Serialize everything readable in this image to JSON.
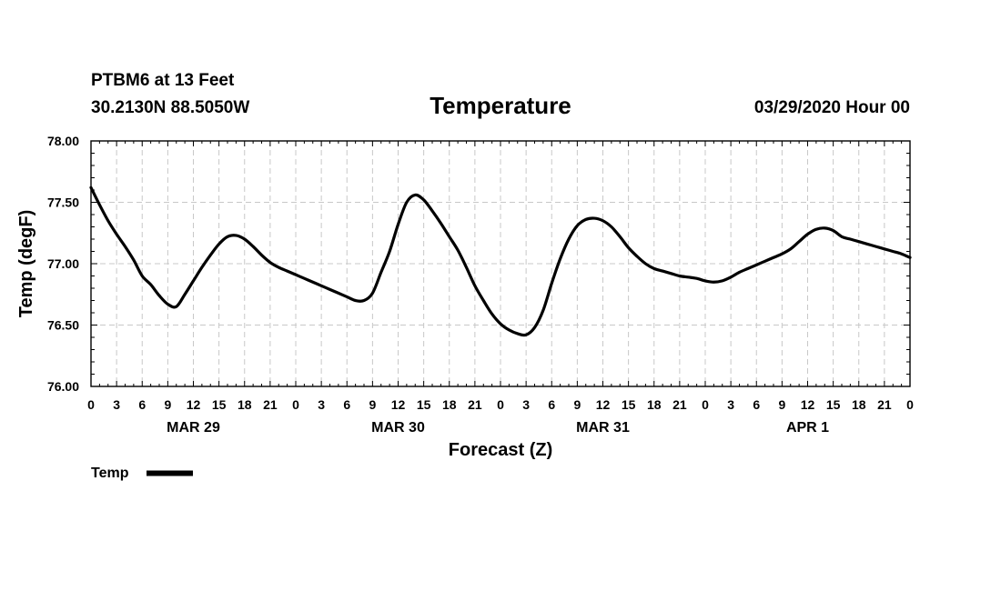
{
  "header": {
    "station": "PTBM6 at 13 Feet",
    "coords": "30.2130N 88.5050W",
    "date": "03/29/2020 Hour 00"
  },
  "chart_data": {
    "type": "line",
    "title": "Temperature",
    "xlabel": "Forecast (Z)",
    "ylabel": "Temp (degF)",
    "ylim": [
      76.0,
      78.0
    ],
    "xlim_hours": [
      0,
      96
    ],
    "y_ticks": [
      "76.00",
      "76.50",
      "77.00",
      "77.50",
      "78.00"
    ],
    "x_tick_hours": [
      0,
      3,
      6,
      9,
      12,
      15,
      18,
      21,
      24,
      27,
      30,
      33,
      36,
      39,
      42,
      45,
      48,
      51,
      54,
      57,
      60,
      63,
      66,
      69,
      72,
      75,
      78,
      81,
      84,
      87,
      90,
      93,
      96
    ],
    "x_tick_labels": [
      "0",
      "3",
      "6",
      "9",
      "12",
      "15",
      "18",
      "21",
      "0",
      "3",
      "6",
      "9",
      "12",
      "15",
      "18",
      "21",
      "0",
      "3",
      "6",
      "9",
      "12",
      "15",
      "18",
      "21",
      "0",
      "3",
      "6",
      "9",
      "12",
      "15",
      "18",
      "21",
      "0"
    ],
    "day_labels": [
      "MAR 29",
      "MAR 30",
      "MAR 31",
      "APR 1"
    ],
    "day_label_hours": [
      12,
      36,
      60,
      84
    ],
    "grid": true,
    "legend": [
      {
        "name": "Temp",
        "placement": "bottom-left"
      }
    ],
    "series": [
      {
        "name": "Temp",
        "color": "#000000",
        "x": [
          0,
          1,
          2,
          3,
          4,
          5,
          6,
          7,
          8,
          9,
          10,
          11,
          12,
          13,
          14,
          15,
          16,
          17,
          18,
          19,
          20,
          21,
          22,
          23,
          24,
          25,
          26,
          27,
          28,
          29,
          30,
          31,
          32,
          33,
          34,
          35,
          36,
          37,
          38,
          39,
          40,
          41,
          42,
          43,
          44,
          45,
          46,
          47,
          48,
          49,
          50,
          51,
          52,
          53,
          54,
          55,
          56,
          57,
          58,
          59,
          60,
          61,
          62,
          63,
          64,
          65,
          66,
          67,
          68,
          69,
          70,
          71,
          72,
          73,
          74,
          75,
          76,
          77,
          78,
          79,
          80,
          81,
          82,
          83,
          84,
          85,
          86,
          87,
          88,
          89,
          90,
          91,
          92,
          93,
          94,
          95,
          96
        ],
        "values": [
          77.62,
          77.48,
          77.35,
          77.24,
          77.14,
          77.03,
          76.9,
          76.83,
          76.74,
          76.67,
          76.65,
          76.75,
          76.86,
          76.97,
          77.07,
          77.16,
          77.22,
          77.23,
          77.2,
          77.14,
          77.07,
          77.01,
          76.97,
          76.94,
          76.91,
          76.88,
          76.85,
          76.82,
          76.79,
          76.76,
          76.73,
          76.7,
          76.7,
          76.76,
          76.93,
          77.1,
          77.32,
          77.5,
          77.56,
          77.52,
          77.43,
          77.33,
          77.22,
          77.11,
          76.97,
          76.82,
          76.7,
          76.59,
          76.51,
          76.46,
          76.43,
          76.42,
          76.48,
          76.62,
          76.84,
          77.04,
          77.2,
          77.31,
          77.36,
          77.37,
          77.35,
          77.3,
          77.22,
          77.13,
          77.06,
          77.0,
          76.96,
          76.94,
          76.92,
          76.9,
          76.89,
          76.88,
          76.86,
          76.85,
          76.86,
          76.89,
          76.93,
          76.96,
          76.99,
          77.02,
          77.05,
          77.08,
          77.12,
          77.18,
          77.24,
          77.28,
          77.29,
          77.27,
          77.22,
          77.2,
          77.18,
          77.16,
          77.14,
          77.12,
          77.1,
          77.08,
          77.05
        ]
      }
    ]
  }
}
